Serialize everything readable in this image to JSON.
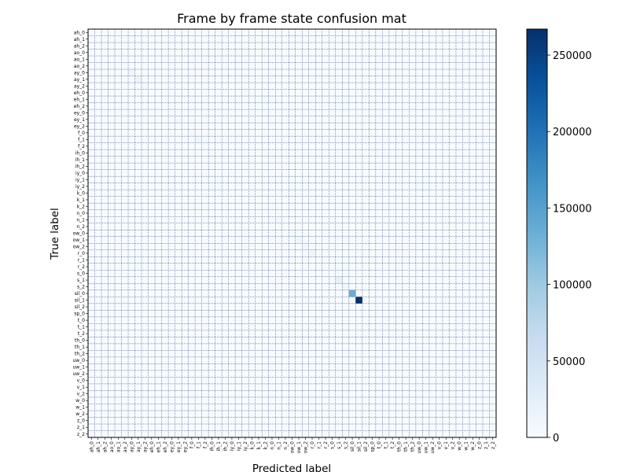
{
  "chart_data": {
    "type": "heatmap",
    "title": "Frame by frame state confusion mat",
    "xlabel": "Predicted label",
    "ylabel": "True label",
    "labels": [
      "ah_0",
      "ah_1",
      "ah_2",
      "ao_0",
      "ao_1",
      "ao_2",
      "ay_0",
      "ay_1",
      "ay_2",
      "eh_0",
      "eh_1",
      "eh_2",
      "ey_0",
      "ey_1",
      "ey_2",
      "f_0",
      "f_1",
      "f_2",
      "ih_0",
      "ih_1",
      "ih_2",
      "iy_0",
      "iy_1",
      "iy_2",
      "k_0",
      "k_1",
      "k_2",
      "n_0",
      "n_1",
      "n_2",
      "ow_0",
      "ow_1",
      "ow_2",
      "r_0",
      "r_1",
      "r_2",
      "s_0",
      "s_1",
      "s_2",
      "sil_0",
      "sil_1",
      "sil_2",
      "sp_0",
      "t_0",
      "t_1",
      "t_2",
      "th_0",
      "th_1",
      "th_2",
      "uw_0",
      "uw_1",
      "uw_2",
      "v_0",
      "v_1",
      "v_2",
      "w_0",
      "w_1",
      "w_2",
      "z_0",
      "z_1",
      "z_2"
    ],
    "colormap": "Blues",
    "colorbar": {
      "min": 0,
      "max": 267000,
      "ticks": [
        0,
        50000,
        100000,
        150000,
        200000,
        250000
      ]
    },
    "grid": true,
    "cells": [
      {
        "row": 39,
        "col": 39,
        "value": 135000
      },
      {
        "row": 40,
        "col": 40,
        "value": 267000
      },
      {
        "row": 37,
        "col": 37,
        "value": 20000
      },
      {
        "row": 38,
        "col": 38,
        "value": 8000
      },
      {
        "row": 6,
        "col": 6,
        "value": 12000
      },
      {
        "row": 7,
        "col": 7,
        "value": 15000
      },
      {
        "row": 8,
        "col": 8,
        "value": 5000
      },
      {
        "row": 15,
        "col": 15,
        "value": 6000
      },
      {
        "row": 16,
        "col": 16,
        "value": 8000
      },
      {
        "row": 17,
        "col": 17,
        "value": 3000
      },
      {
        "row": 31,
        "col": 31,
        "value": 10000
      },
      {
        "row": 32,
        "col": 32,
        "value": 8000
      },
      {
        "row": 33,
        "col": 33,
        "value": 11000
      },
      {
        "row": 30,
        "col": 30,
        "value": 6000
      },
      {
        "row": 28,
        "col": 28,
        "value": 4000
      },
      {
        "row": 29,
        "col": 29,
        "value": 3000
      },
      {
        "row": 21,
        "col": 21,
        "value": 4000
      },
      {
        "row": 22,
        "col": 22,
        "value": 3000
      },
      {
        "row": 12,
        "col": 12,
        "value": 3000
      },
      {
        "row": 13,
        "col": 13,
        "value": 4000
      },
      {
        "row": 44,
        "col": 44,
        "value": 3000
      },
      {
        "row": 45,
        "col": 45,
        "value": 3000
      },
      {
        "row": 49,
        "col": 49,
        "value": 3000
      },
      {
        "row": 50,
        "col": 50,
        "value": 4000
      }
    ]
  }
}
